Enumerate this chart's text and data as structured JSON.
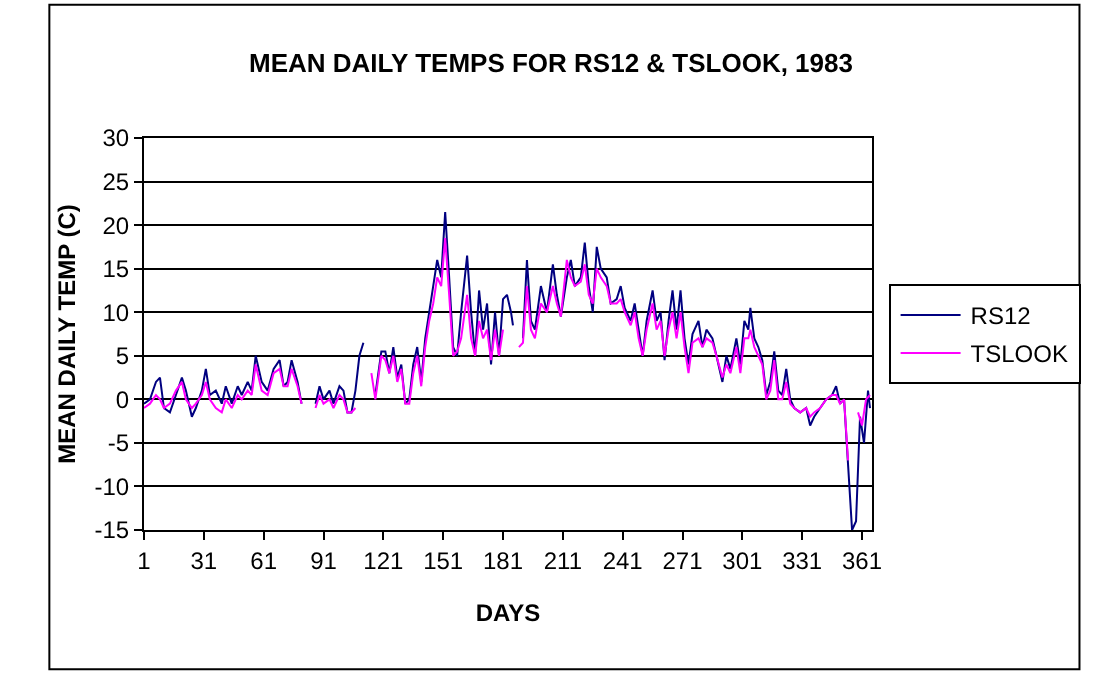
{
  "chart_data": {
    "type": "line",
    "title": "MEAN DAILY TEMPS FOR RS12 & TSLOOK, 1983",
    "xlabel": "DAYS",
    "ylabel": "MEAN DAILY TEMP (C)",
    "xlim": [
      1,
      366
    ],
    "xticks": [
      1,
      31,
      61,
      91,
      121,
      151,
      181,
      211,
      241,
      271,
      301,
      331,
      361
    ],
    "ylim": [
      -15,
      30
    ],
    "yticks": [
      -15,
      -10,
      -5,
      0,
      5,
      10,
      15,
      20,
      25,
      30
    ],
    "grid": "y",
    "legend": "right",
    "marker": "none",
    "line_style": "solid",
    "series": [
      {
        "name": "RS12",
        "color": "#000080",
        "x": [
          1,
          4,
          7,
          9,
          11,
          14,
          17,
          20,
          22,
          25,
          27,
          30,
          32,
          34,
          37,
          40,
          42,
          45,
          48,
          50,
          53,
          55,
          57,
          60,
          63,
          66,
          69,
          71,
          73,
          75,
          78,
          80,
          83,
          87,
          89,
          91,
          94,
          96,
          99,
          101,
          103,
          105,
          107,
          109,
          111,
          113,
          117,
          120,
          122,
          124,
          126,
          128,
          130,
          132,
          134,
          136,
          138,
          140,
          142,
          144,
          146,
          148,
          150,
          152,
          154,
          156,
          158,
          160,
          163,
          165,
          167,
          169,
          171,
          173,
          175,
          177,
          179,
          181,
          183,
          185,
          186,
          188,
          191,
          193,
          195,
          197,
          200,
          203,
          206,
          208,
          210,
          213,
          215,
          217,
          220,
          222,
          224,
          226,
          228,
          230,
          233,
          235,
          238,
          240,
          242,
          245,
          247,
          249,
          251,
          253,
          256,
          258,
          260,
          262,
          264,
          266,
          268,
          270,
          272,
          274,
          276,
          279,
          281,
          283,
          286,
          288,
          291,
          293,
          295,
          298,
          300,
          302,
          304,
          305,
          307,
          309,
          311,
          313,
          315,
          317,
          319,
          321,
          323,
          325,
          327,
          330,
          333,
          335,
          337,
          340,
          343,
          346,
          348,
          350,
          352,
          354,
          356,
          358,
          360,
          362,
          364,
          365
        ],
        "values": [
          -0.5,
          0,
          2,
          2.5,
          -1,
          -1.5,
          0.5,
          2.5,
          1,
          -2,
          -1,
          1,
          3.5,
          0.5,
          1,
          -0.5,
          1.5,
          -0.5,
          1.5,
          0.5,
          2,
          1,
          5,
          2,
          1,
          3.5,
          4.5,
          1.5,
          2,
          4.5,
          2,
          -0.5,
          null,
          -0.5,
          1.5,
          0,
          1,
          -0.5,
          1.5,
          1,
          -1.5,
          -1.5,
          1,
          5,
          6.5,
          null,
          0.5,
          5.5,
          5.5,
          3,
          6,
          2.5,
          4,
          -0.5,
          0,
          4,
          6,
          2,
          7,
          10,
          13,
          16,
          14,
          21.5,
          14,
          6,
          5,
          10,
          16.5,
          10,
          5,
          12.5,
          8,
          11,
          4,
          10,
          5,
          11.5,
          12,
          10,
          8.5,
          null,
          7,
          16,
          9,
          8,
          13,
          10,
          15.5,
          12,
          9.5,
          14,
          16,
          13,
          14,
          18,
          13,
          10,
          17.5,
          15,
          14,
          11,
          11.5,
          13,
          10.5,
          9,
          11,
          8,
          5,
          9,
          12.5,
          9,
          10,
          4.5,
          9,
          12.5,
          8,
          12.5,
          7,
          4,
          7.5,
          9,
          6,
          8,
          7,
          5,
          2,
          5,
          3.5,
          7,
          4,
          9,
          8,
          10.5,
          7,
          6,
          4.5,
          0.5,
          2,
          5.5,
          1,
          0.5,
          3.5,
          0,
          -1,
          -1.5,
          -1,
          -3,
          -2,
          -1,
          0,
          0.5,
          1.5,
          -0.5,
          0,
          -7.5,
          -15,
          -14,
          -2,
          -5,
          1,
          -1
        ]
      },
      {
        "name": "TSLOOK",
        "color": "#ff00ff",
        "x": [
          1,
          4,
          7,
          9,
          11,
          14,
          17,
          20,
          22,
          25,
          27,
          30,
          32,
          34,
          37,
          40,
          42,
          45,
          48,
          50,
          53,
          55,
          57,
          60,
          63,
          66,
          69,
          71,
          73,
          75,
          78,
          80,
          83,
          87,
          89,
          91,
          94,
          96,
          99,
          101,
          103,
          105,
          107,
          111,
          115,
          117,
          120,
          122,
          124,
          126,
          128,
          130,
          132,
          134,
          136,
          138,
          140,
          142,
          144,
          146,
          148,
          150,
          152,
          154,
          156,
          158,
          160,
          163,
          165,
          167,
          169,
          171,
          173,
          175,
          177,
          179,
          181,
          185,
          189,
          191,
          193,
          195,
          197,
          200,
          203,
          206,
          208,
          210,
          213,
          215,
          217,
          220,
          222,
          224,
          226,
          228,
          230,
          233,
          235,
          238,
          240,
          242,
          245,
          247,
          249,
          251,
          253,
          256,
          258,
          260,
          262,
          264,
          266,
          268,
          270,
          272,
          274,
          276,
          279,
          281,
          283,
          286,
          288,
          291,
          293,
          295,
          298,
          300,
          302,
          304,
          305,
          307,
          309,
          311,
          313,
          315,
          317,
          319,
          321,
          323,
          325,
          327,
          330,
          333,
          335,
          337,
          340,
          343,
          346,
          348,
          350,
          352,
          354,
          356,
          359,
          361,
          363,
          365
        ],
        "values": [
          -1,
          -0.5,
          0.5,
          0,
          -1,
          -0.5,
          1,
          2,
          0,
          -1,
          -0.5,
          0.5,
          2,
          0,
          -1,
          -1.5,
          0,
          -1,
          0.5,
          0,
          1,
          0.5,
          4,
          1,
          0.5,
          3,
          3.5,
          1.5,
          1.5,
          3.5,
          1.5,
          -0.5,
          null,
          -1,
          0.5,
          -0.5,
          0,
          -1,
          0.5,
          0,
          -1.5,
          -1.5,
          -1,
          null,
          3,
          0,
          5,
          4.5,
          3,
          5,
          2,
          3.5,
          -0.5,
          -0.5,
          3,
          5,
          1.5,
          6,
          9,
          11,
          14,
          13,
          18.5,
          12,
          5,
          5.5,
          7,
          12,
          7,
          5,
          9,
          7,
          8,
          4.5,
          8,
          5,
          8,
          null,
          6,
          6.5,
          13,
          8,
          7,
          11,
          10,
          13,
          11,
          9.5,
          16,
          14,
          13,
          13.5,
          15.5,
          12,
          11,
          15,
          14,
          13,
          11,
          11,
          11.5,
          10,
          8.5,
          10,
          7,
          5,
          8,
          11,
          8,
          9,
          5,
          8,
          10,
          7,
          10,
          6,
          3,
          6.5,
          7,
          6,
          7,
          6.5,
          5,
          2.5,
          4,
          3,
          6,
          3,
          7,
          7,
          8,
          6,
          5,
          4,
          0,
          1,
          4.5,
          0,
          0,
          2,
          -0.5,
          -1,
          -1.5,
          -1,
          -2,
          -1.5,
          -1,
          0,
          0.5,
          0.5,
          -0.5,
          0,
          -7,
          null,
          -1.5,
          -3,
          0,
          0.5
        ]
      }
    ]
  }
}
